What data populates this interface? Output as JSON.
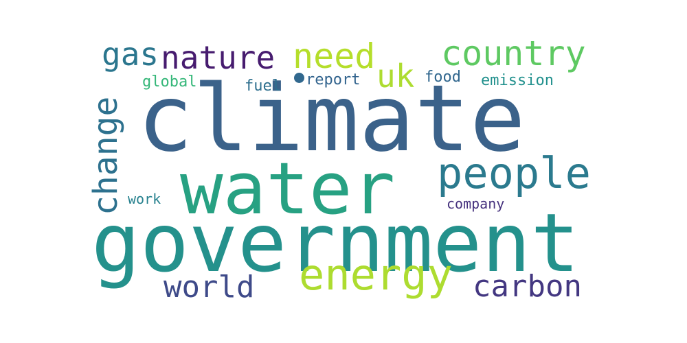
{
  "words": {
    "climate": {
      "text": "climate",
      "color": "#3b628a"
    },
    "water": {
      "text": "water",
      "color": "#27a182"
    },
    "government": {
      "text": "government",
      "color": "#24918c"
    },
    "energy": {
      "text": "energy",
      "color": "#addc30"
    },
    "people": {
      "text": "people",
      "color": "#2b7a8e"
    },
    "country": {
      "text": "country",
      "color": "#5ec962"
    },
    "nature": {
      "text": "nature",
      "color": "#471c6f"
    },
    "need": {
      "text": "need",
      "color": "#b5de2b"
    },
    "gas": {
      "text": "gas",
      "color": "#2b768e"
    },
    "uk": {
      "text": "uk",
      "color": "#addc30"
    },
    "change": {
      "text": "change",
      "color": "#2d718e"
    },
    "world": {
      "text": "world",
      "color": "#3e4a89"
    },
    "carbon": {
      "text": "carbon",
      "color": "#433781"
    },
    "global": {
      "text": "global",
      "color": "#35b779"
    },
    "fuel": {
      "text": "fuel",
      "color": "#2e6f8e"
    },
    "report": {
      "text": "report",
      "color": "#32648e"
    },
    "food": {
      "text": "food",
      "color": "#31678e"
    },
    "emission": {
      "text": "emission",
      "color": "#21908d"
    },
    "work": {
      "text": "work",
      "color": "#26818e"
    },
    "company": {
      "text": "company",
      "color": "#46327e"
    }
  },
  "dot": {
    "color": "#31688e"
  }
}
